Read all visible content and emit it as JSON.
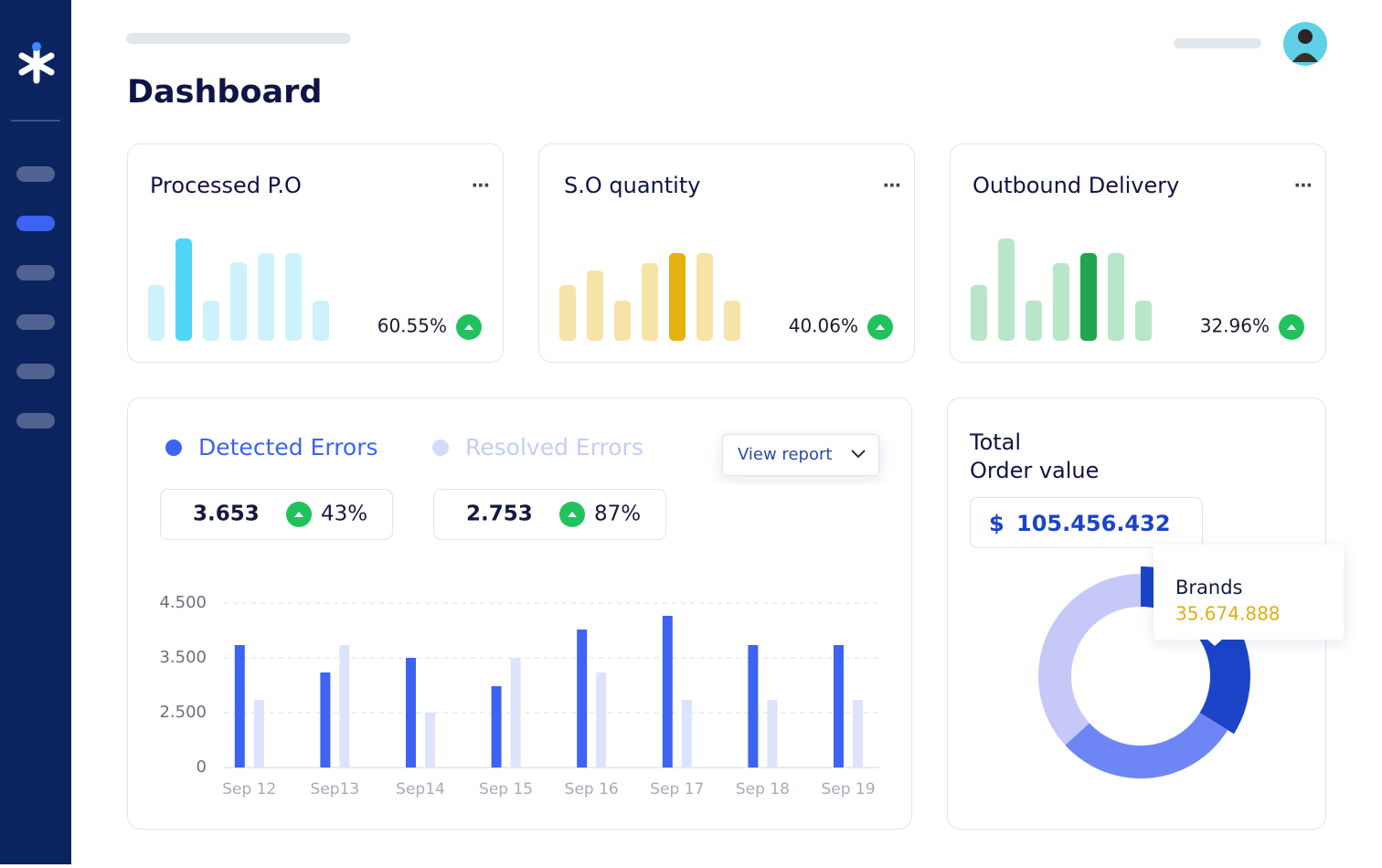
{
  "header": {
    "title": "Dashboard"
  },
  "cards": [
    {
      "title": "Processed P.O",
      "change": "60.55%",
      "bars": [
        61,
        112,
        44,
        86,
        96,
        96,
        44
      ],
      "highlight": 1,
      "color": "#cdf2fb",
      "highlight_color": "#4fd6f6"
    },
    {
      "title": "S.O quantity",
      "change": "40.06%",
      "bars": [
        61,
        77,
        44,
        85,
        96,
        96,
        44
      ],
      "highlight": 4,
      "color": "#f6e3a8",
      "highlight_color": "#e6b20f"
    },
    {
      "title": "Outbound Delivery",
      "change": "32.96%",
      "bars": [
        61,
        112,
        44,
        85,
        96,
        96,
        44
      ],
      "highlight": 4,
      "color": "#b9e6c9",
      "highlight_color": "#1fa64f"
    }
  ],
  "errors_chart": {
    "type": "bar",
    "button": "View report",
    "categories": [
      "Sep 12",
      "Sep13",
      "Sep14",
      "Sep 15",
      "Sep 16",
      "Sep 17",
      "Sep 18",
      "Sep 19"
    ],
    "series": [
      {
        "name": "Detected Errors",
        "color": "#3d63f2",
        "total": "3.653",
        "change": "43%",
        "values": [
          3733,
          3233,
          3500,
          2983,
          4017,
          4267,
          3733,
          3733
        ]
      },
      {
        "name": "Resolved Errors",
        "color": "#dde3fb",
        "total": "2.753",
        "change": "87%",
        "values": [
          2733,
          3733,
          2500,
          3500,
          3233,
          2733,
          2733,
          2733
        ]
      }
    ],
    "ylim": [
      0,
      4500
    ],
    "yticks": [
      0,
      {
        "value": 2500,
        "label": "2.500"
      },
      {
        "value": 3500,
        "label": "3.500"
      },
      {
        "value": 4500,
        "label": "4.500"
      }
    ],
    "grid": true
  },
  "order_value": {
    "type": "pie",
    "title_lines": [
      "Total",
      "Order value"
    ],
    "currency": "$",
    "amount": "105.456.432",
    "tooltip": {
      "label": "Brands",
      "value_label": "35.674.888"
    },
    "segments": [
      {
        "value": 35674888,
        "color": "#1b44c8"
      },
      {
        "value": 31000000,
        "color": "#6e86f5"
      },
      {
        "value": 38781544,
        "color": "#c6c9f7"
      }
    ]
  }
}
